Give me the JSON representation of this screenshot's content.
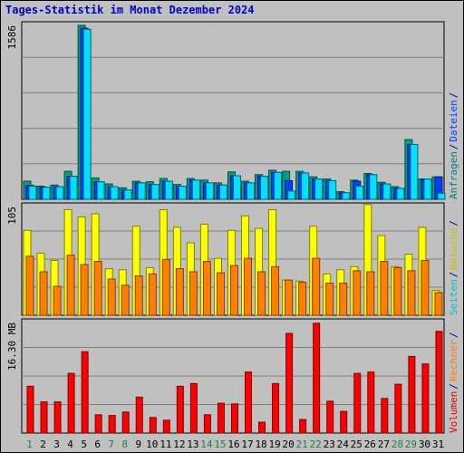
{
  "title": "Tages-Statistik im Monat Dezember 2024",
  "colors": {
    "weekday_label": "#000000",
    "weekend_label": "#208040",
    "grid": "#808080"
  },
  "chart_data": [
    {
      "type": "bar",
      "panel": "top",
      "y_max_label": "1586",
      "ylim": [
        0,
        1586
      ],
      "right_labels": [
        {
          "text": "Anfragen",
          "color": "#008080"
        },
        {
          "text": "/",
          "color": "#0000a0"
        },
        {
          "text": "Dateien",
          "color": "#0040ff"
        },
        {
          "text": "/",
          "color": "#0000a0"
        }
      ],
      "series": [
        {
          "name": "Anfragen",
          "color": "#00a080",
          "dark": "#005040",
          "values": [
            165,
            120,
            130,
            255,
            1586,
            195,
            140,
            105,
            165,
            160,
            190,
            135,
            190,
            175,
            150,
            250,
            165,
            225,
            265,
            255,
            255,
            205,
            185,
            70,
            175,
            235,
            155,
            115,
            545,
            185,
            205
          ]
        },
        {
          "name": "Dateien",
          "color": "#0040ff",
          "dark": "#001880",
          "values": [
            128,
            110,
            115,
            210,
            1560,
            160,
            115,
            85,
            150,
            135,
            165,
            120,
            175,
            150,
            130,
            215,
            150,
            210,
            245,
            170,
            240,
            185,
            170,
            60,
            165,
            225,
            140,
            100,
            500,
            185,
            205
          ]
        },
        {
          "name": "Seiten",
          "color": "#00e0ff",
          "dark": "#006080",
          "values": [
            120,
            110,
            115,
            210,
            1550,
            160,
            115,
            85,
            150,
            135,
            165,
            120,
            175,
            150,
            130,
            215,
            150,
            210,
            245,
            75,
            240,
            185,
            170,
            60,
            120,
            225,
            140,
            100,
            500,
            185,
            55
          ]
        }
      ]
    },
    {
      "type": "bar",
      "panel": "middle",
      "y_max_label": "105",
      "ylim": [
        0,
        105
      ],
      "right_labels": [
        {
          "text": "Seiten",
          "color": "#00c0d0"
        },
        {
          "text": "/",
          "color": "#0000a0"
        },
        {
          "text": "Besuche",
          "color": "#d0c000"
        },
        {
          "text": "/",
          "color": "#0000a0"
        }
      ],
      "series": [
        {
          "name": "Seiten",
          "color": "#ffff00",
          "dark": "#808000",
          "values": [
            82,
            60,
            53,
            102,
            95,
            98,
            45,
            44,
            86,
            46,
            102,
            85,
            70,
            88,
            55,
            82,
            96,
            84,
            102,
            34,
            33,
            86,
            40,
            44,
            47,
            107,
            77,
            47,
            59,
            85,
            24
          ]
        },
        {
          "name": "Besuche",
          "color": "#ff8000",
          "dark": "#804000",
          "values": [
            57,
            42,
            28,
            58,
            49,
            52,
            35,
            29,
            38,
            40,
            54,
            45,
            42,
            52,
            41,
            48,
            55,
            42,
            47,
            34,
            32,
            55,
            31,
            31,
            43,
            42,
            52,
            46,
            43,
            53,
            22
          ]
        }
      ]
    },
    {
      "type": "bar",
      "panel": "bottom",
      "y_max_label": "16.30 MB",
      "ylim": [
        0,
        16.3
      ],
      "right_labels": [
        {
          "text": "Volumen",
          "color": "#e00000"
        },
        {
          "text": "/",
          "color": "#0000a0"
        },
        {
          "text": "Rechner",
          "color": "#ff8000"
        },
        {
          "text": "/",
          "color": "#0000a0"
        }
      ],
      "series": [
        {
          "name": "Volumen",
          "color": "#ff0000",
          "dark": "#800000",
          "values": [
            6.9,
            4.6,
            4.6,
            8.8,
            12.0,
            2.7,
            2.6,
            3.1,
            5.3,
            2.3,
            1.9,
            6.9,
            7.3,
            2.7,
            4.4,
            4.3,
            9.0,
            1.6,
            7.3,
            14.7,
            2.0,
            16.2,
            4.7,
            3.2,
            8.8,
            9.0,
            5.1,
            7.2,
            11.3,
            10.2,
            15.0
          ]
        }
      ]
    }
  ],
  "days": [
    {
      "label": "1",
      "weekend": true
    },
    {
      "label": "2",
      "weekend": false
    },
    {
      "label": "3",
      "weekend": false
    },
    {
      "label": "4",
      "weekend": false
    },
    {
      "label": "5",
      "weekend": false
    },
    {
      "label": "6",
      "weekend": false
    },
    {
      "label": "7",
      "weekend": true
    },
    {
      "label": "8",
      "weekend": true
    },
    {
      "label": "9",
      "weekend": false
    },
    {
      "label": "10",
      "weekend": false
    },
    {
      "label": "11",
      "weekend": false
    },
    {
      "label": "12",
      "weekend": false
    },
    {
      "label": "13",
      "weekend": false
    },
    {
      "label": "14",
      "weekend": true
    },
    {
      "label": "15",
      "weekend": true
    },
    {
      "label": "16",
      "weekend": false
    },
    {
      "label": "17",
      "weekend": false
    },
    {
      "label": "18",
      "weekend": false
    },
    {
      "label": "19",
      "weekend": false
    },
    {
      "label": "20",
      "weekend": false
    },
    {
      "label": "21",
      "weekend": true
    },
    {
      "label": "22",
      "weekend": true
    },
    {
      "label": "23",
      "weekend": false
    },
    {
      "label": "24",
      "weekend": false
    },
    {
      "label": "25",
      "weekend": false
    },
    {
      "label": "26",
      "weekend": false
    },
    {
      "label": "27",
      "weekend": false
    },
    {
      "label": "28",
      "weekend": true
    },
    {
      "label": "29",
      "weekend": true
    },
    {
      "label": "30",
      "weekend": false
    },
    {
      "label": "31",
      "weekend": false
    }
  ]
}
